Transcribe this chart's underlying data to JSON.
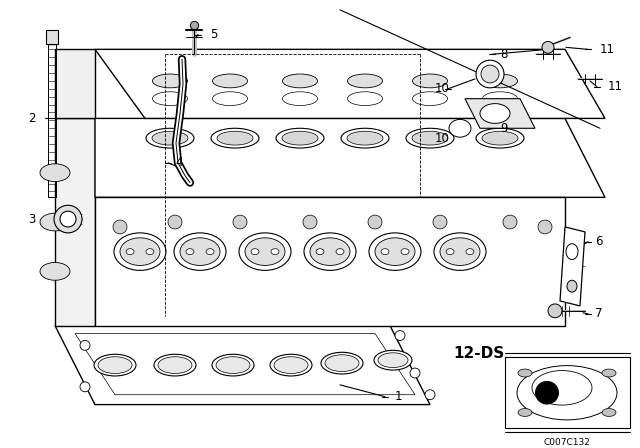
{
  "bg_color": "#ffffff",
  "fig_width": 6.4,
  "fig_height": 4.48,
  "dpi": 100,
  "ds_label": "12-DS",
  "code_label": "C007C132"
}
